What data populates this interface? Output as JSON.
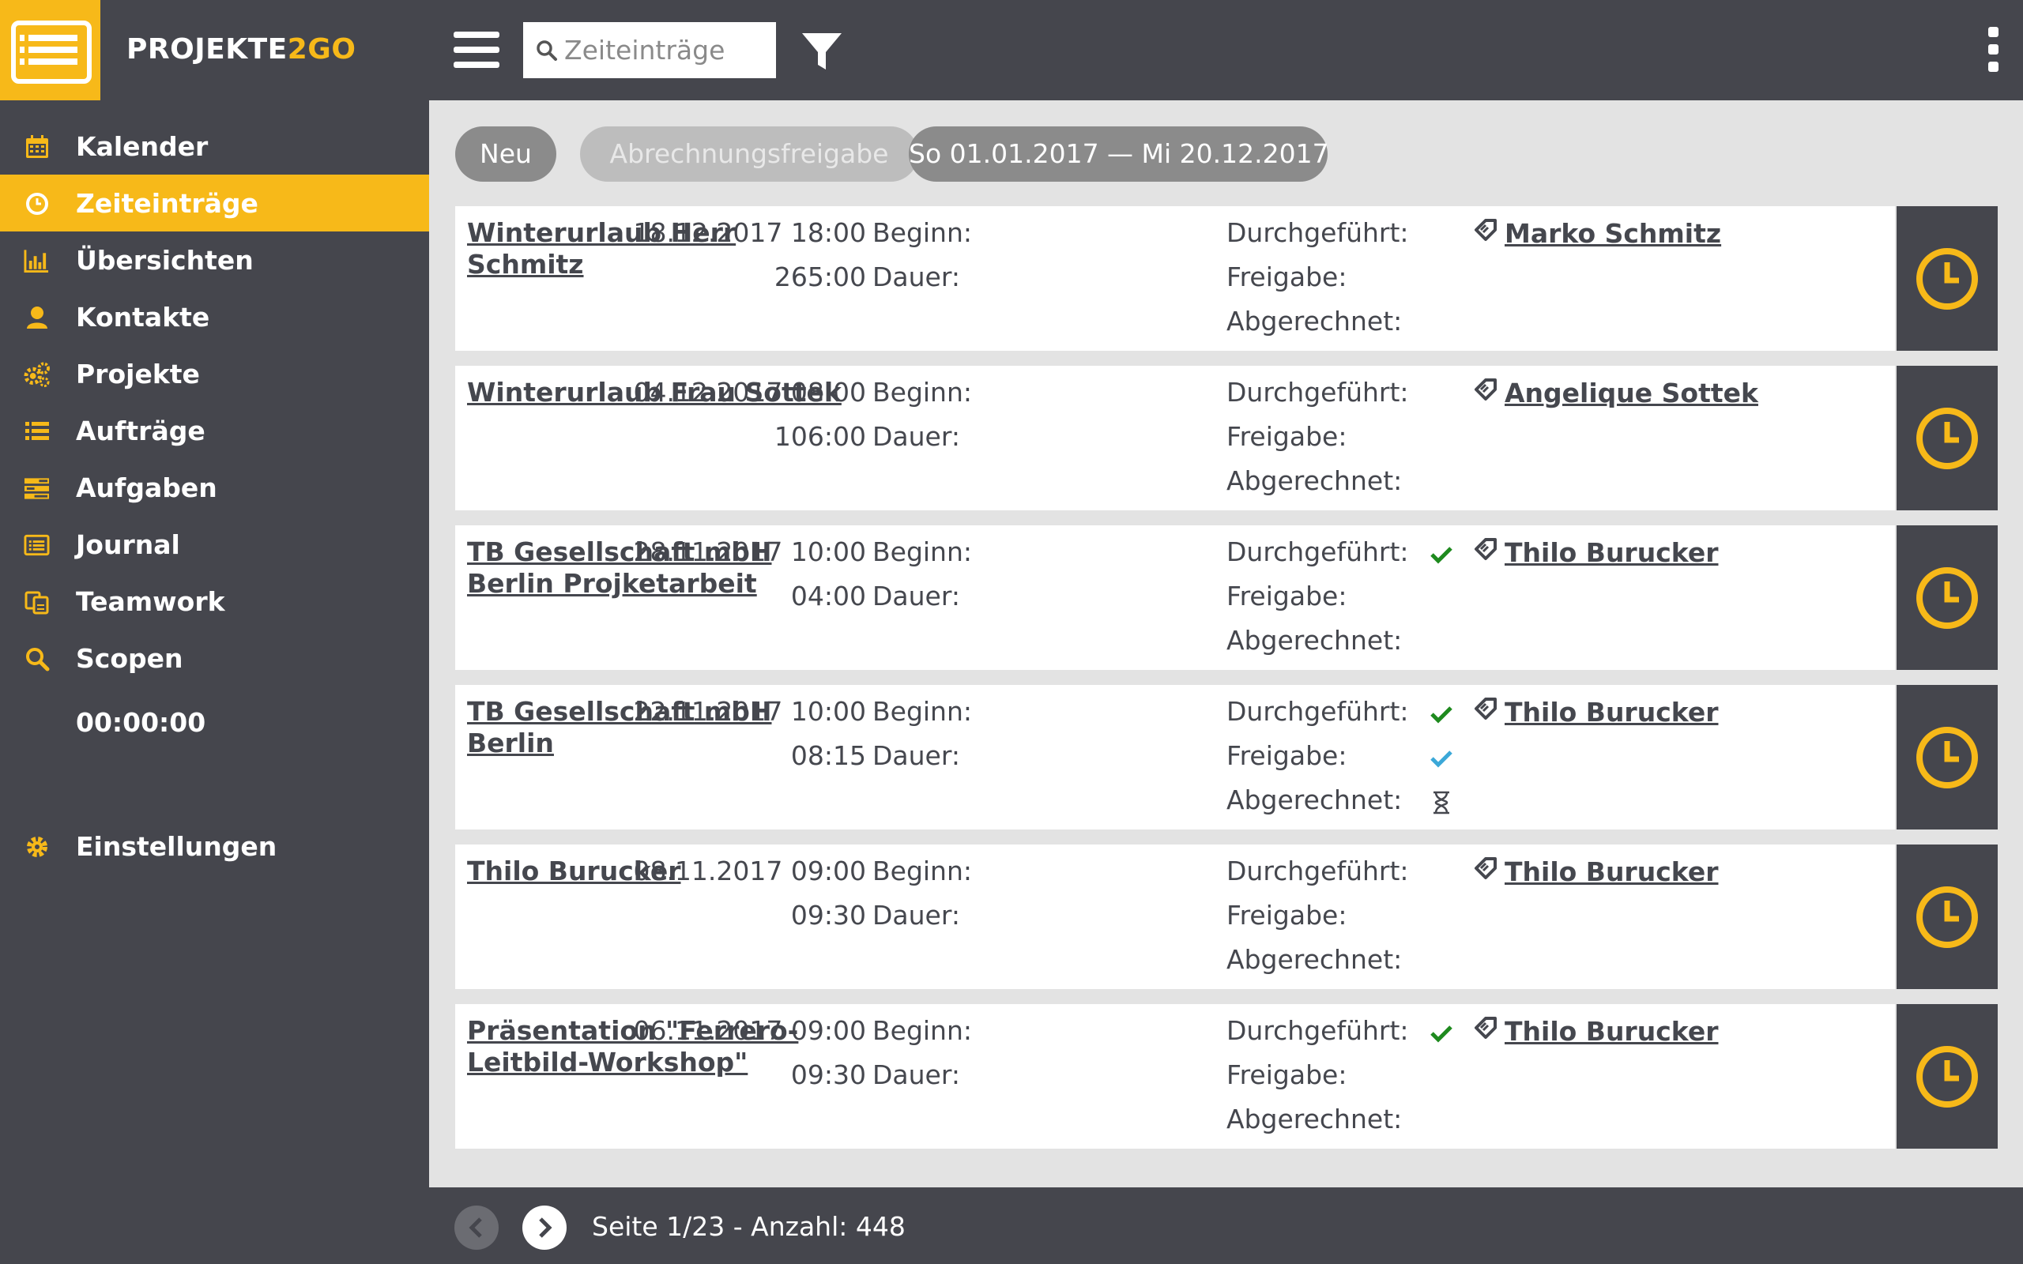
{
  "app": {
    "brand_main": "PROJEKTE",
    "brand_accent": "2GO",
    "accent_color": "#f7b919",
    "dark_color": "#45464d"
  },
  "header": {
    "search_placeholder": "Zeiteinträge",
    "icons": [
      "menu-icon",
      "search-icon",
      "filter-icon",
      "kebab-menu-icon"
    ]
  },
  "sidebar": {
    "items": [
      {
        "label": "Kalender",
        "icon": "calendar-icon"
      },
      {
        "label": "Zeiteinträge",
        "icon": "clock-icon",
        "active": true
      },
      {
        "label": "Übersichten",
        "icon": "bar-chart-icon"
      },
      {
        "label": "Kontakte",
        "icon": "person-icon"
      },
      {
        "label": "Projekte",
        "icon": "gears-icon"
      },
      {
        "label": "Aufträge",
        "icon": "list-icon"
      },
      {
        "label": "Aufgaben",
        "icon": "tasks-icon"
      },
      {
        "label": "Journal",
        "icon": "journal-icon"
      },
      {
        "label": "Teamwork",
        "icon": "teamwork-icon"
      },
      {
        "label": "Scopen",
        "icon": "search-icon"
      }
    ],
    "timer": "00:00:00",
    "settings_label": "Einstellungen"
  },
  "toolbar": {
    "new_label": "Neu",
    "release_label": "Abrechnungsfreigabe",
    "date_range": "So 01.01.2017 — Mi 20.12.2017"
  },
  "labels": {
    "begin": "Beginn:",
    "duration": "Dauer:",
    "done": "Durchgeführt:",
    "release": "Freigabe:",
    "billed": "Abgerechnet:"
  },
  "entries": [
    {
      "title": "Winterurlaub Herr Schmitz",
      "begin": "18.12.2017 18:00",
      "duration": "265:00",
      "person": "Marko Schmitz",
      "done": false,
      "release": false,
      "billed": false
    },
    {
      "title": "Winterurlaub Frau Sottek",
      "begin": "04.12.2017 08:00",
      "duration": "106:00",
      "person": "Angelique Sottek",
      "done": false,
      "release": false,
      "billed": false
    },
    {
      "title": "TB Gesellschaft mbH Berlin Projketarbeit",
      "begin": "28.11.2017 10:00",
      "duration": "04:00",
      "person": "Thilo Burucker",
      "done": true,
      "release": false,
      "billed": false
    },
    {
      "title": "TB Gesellschaft mbH Berlin",
      "begin": "22.11.2017 10:00",
      "duration": "08:15",
      "person": "Thilo Burucker",
      "done": true,
      "release": true,
      "billed": "pending"
    },
    {
      "title": "Thilo Burucker",
      "begin": "08.11.2017 09:00",
      "duration": "09:30",
      "person": "Thilo Burucker",
      "done": false,
      "release": false,
      "billed": false
    },
    {
      "title": "Präsentation \"Ferrero-Leitbild-Workshop\"",
      "begin": "06.11.2017 09:00",
      "duration": "09:30",
      "person": "Thilo Burucker",
      "done": true,
      "release": false,
      "billed": false
    }
  ],
  "footer": {
    "page_info": "Seite 1/23 - Anzahl: 448"
  }
}
